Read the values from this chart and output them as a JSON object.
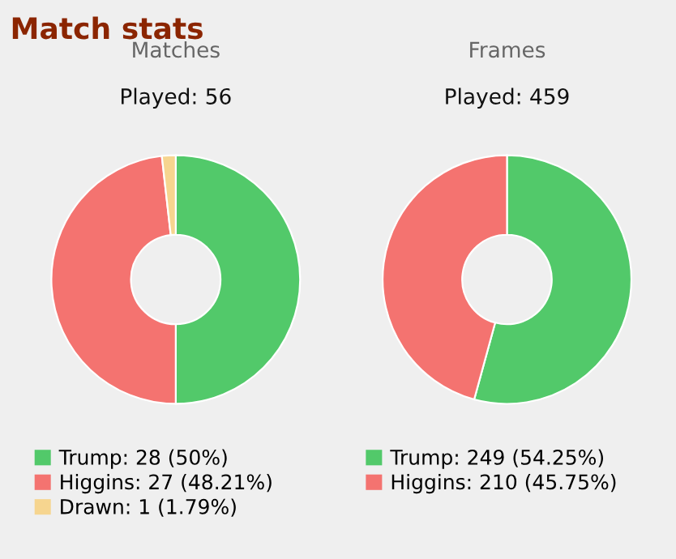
{
  "chart_data": [
    {
      "type": "donut",
      "title": "Matches",
      "subtitle": "Played: 56",
      "annotations": [
        "Match stats"
      ],
      "categories": [
        "Trump",
        "Higgins",
        "Drawn"
      ],
      "values": [
        28,
        27,
        1
      ],
      "value_labels": [
        "28 (50%)",
        "27 (48.21%)",
        "1 (1.79%)"
      ],
      "colors": [
        "#52c96a",
        "#f47370",
        "#f6d58f"
      ],
      "legend": "bottom"
    },
    {
      "type": "donut",
      "title": "Frames",
      "subtitle": "Played: 459",
      "categories": [
        "Trump",
        "Higgins"
      ],
      "values": [
        249,
        210
      ],
      "value_labels": [
        "249 (54.25%)",
        "210 (45.75%)"
      ],
      "colors": [
        "#52c96a",
        "#f47370"
      ],
      "legend": "bottom"
    }
  ]
}
